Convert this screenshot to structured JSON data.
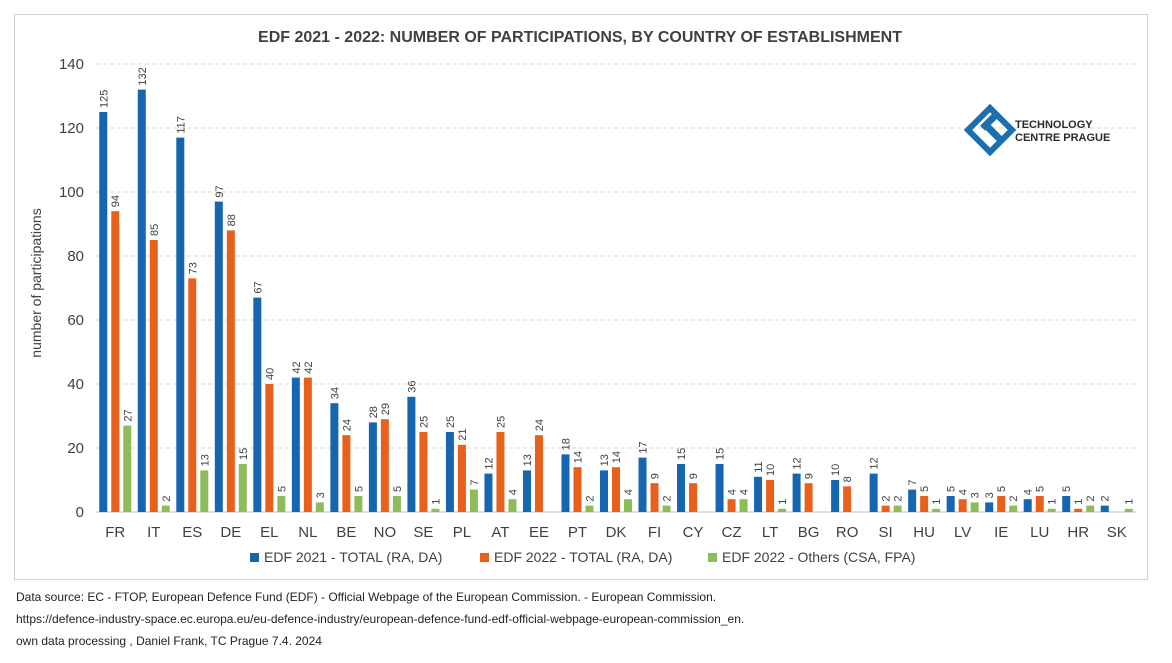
{
  "source": {
    "line1": "Data source: EC - FTOP, European Defence Fund (EDF) - Official Webpage of the European Commission. - European Commission.",
    "line2": "https://defence-industry-space.ec.europa.eu/eu-defence-industry/european-defence-fund-edf-official-webpage-european-commission_en.",
    "line3": "own data processing , Daniel Frank, TC Prague 7.4. 2024"
  },
  "logo": {
    "line1": "TECHNOLOGY",
    "line2": "CENTRE PRAGUE"
  },
  "colors": {
    "series": [
      "#1565b0",
      "#e8601c",
      "#8fbc5a"
    ],
    "grid": "#d9d9d9",
    "text": "#404040",
    "logo": "#1a6fb0"
  },
  "chart_data": {
    "type": "bar",
    "title": "EDF 2021 - 2022: NUMBER OF PARTICIPATIONS, BY COUNTRY OF ESTABLISHMENT",
    "xlabel": "",
    "ylabel": "number of participations",
    "ylim": [
      0,
      140
    ],
    "yticks": [
      0,
      20,
      40,
      60,
      80,
      100,
      120,
      140
    ],
    "grid": true,
    "legend_position": "bottom",
    "categories": [
      "FR",
      "IT",
      "ES",
      "DE",
      "EL",
      "NL",
      "BE",
      "NO",
      "SE",
      "PL",
      "AT",
      "EE",
      "PT",
      "DK",
      "FI",
      "CY",
      "CZ",
      "LT",
      "BG",
      "RO",
      "SI",
      "HU",
      "LV",
      "IE",
      "LU",
      "HR",
      "SK"
    ],
    "series": [
      {
        "name": "EDF 2021 - TOTAL (RA, DA)",
        "values": [
          125,
          132,
          117,
          97,
          67,
          42,
          34,
          28,
          36,
          25,
          12,
          13,
          18,
          13,
          17,
          15,
          15,
          11,
          12,
          10,
          12,
          7,
          5,
          3,
          4,
          5,
          2
        ]
      },
      {
        "name": "EDF 2022 - TOTAL (RA, DA)",
        "values": [
          94,
          85,
          73,
          88,
          40,
          42,
          24,
          29,
          25,
          21,
          25,
          24,
          14,
          14,
          9,
          9,
          4,
          10,
          9,
          8,
          2,
          5,
          4,
          5,
          5,
          1,
          null
        ]
      },
      {
        "name": "EDF 2022 - Others (CSA, FPA)",
        "values": [
          27,
          2,
          13,
          15,
          5,
          3,
          5,
          5,
          1,
          7,
          4,
          null,
          2,
          4,
          2,
          null,
          4,
          1,
          null,
          null,
          2,
          1,
          3,
          2,
          1,
          2,
          1
        ]
      }
    ]
  }
}
